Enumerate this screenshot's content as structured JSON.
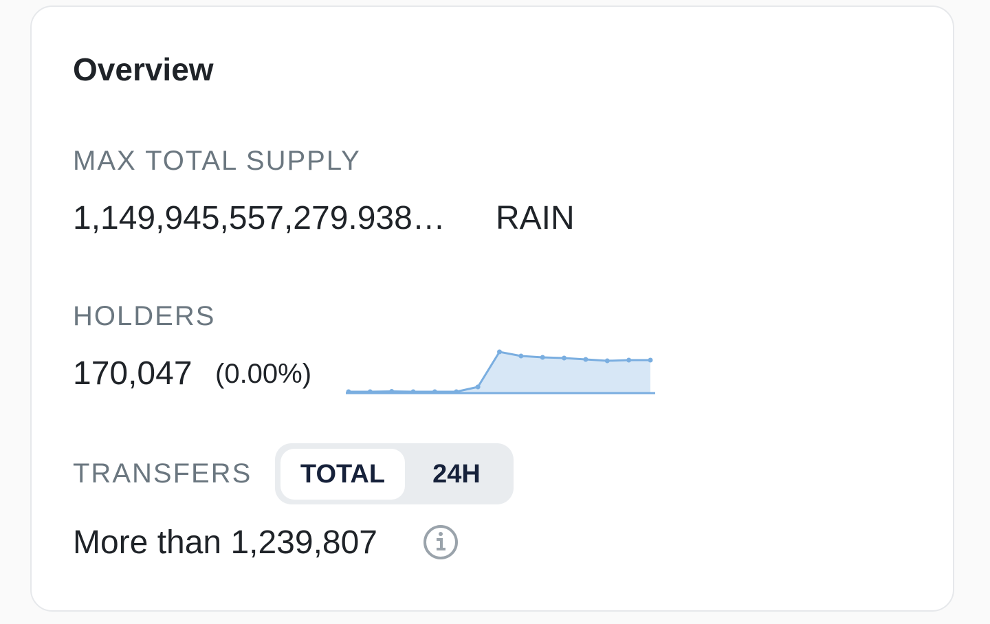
{
  "title": "Overview",
  "max_total_supply": {
    "label": "MAX TOTAL SUPPLY",
    "value": "1,149,945,557,279.938…",
    "unit": "RAIN"
  },
  "holders": {
    "label": "HOLDERS",
    "value": "170,047",
    "change": "(0.00%)",
    "sparkline": {
      "values": [
        0,
        0,
        0.5,
        0,
        0,
        0,
        7,
        58,
        52,
        50,
        49,
        47,
        45,
        46,
        46
      ],
      "color": "#7aaee0"
    }
  },
  "transfers": {
    "label": "TRANSFERS",
    "tabs": [
      "TOTAL",
      "24H"
    ],
    "value": "More than 1,239,807"
  }
}
